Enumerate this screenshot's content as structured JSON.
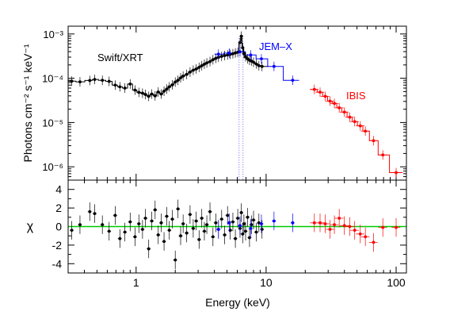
{
  "chart_data": [
    {
      "type": "scatter",
      "panel": "spectrum",
      "ylabel": "Photons cm⁻² s⁻¹ keV⁻¹",
      "xscale": "log",
      "yscale": "log",
      "xlim": [
        0.3,
        120
      ],
      "ylim": [
        5e-07,
        0.0015
      ],
      "yticks": [
        {
          "value": 1e-06,
          "label": "10⁻⁶"
        },
        {
          "value": 1e-05,
          "label": "10⁻⁵"
        },
        {
          "value": 0.0001,
          "label": "10⁻⁴"
        },
        {
          "value": 0.001,
          "label": "10⁻³"
        }
      ],
      "series": [
        {
          "name": "Swift/XRT",
          "color": "#000000",
          "points": [
            [
              0.32,
              8.6e-05
            ],
            [
              0.37,
              8.3e-05
            ],
            [
              0.44,
              8.9e-05
            ],
            [
              0.48,
              9.4e-05
            ],
            [
              0.55,
              9e-05
            ],
            [
              0.62,
              8.5e-05
            ],
            [
              0.69,
              7e-05
            ],
            [
              0.75,
              6.4e-05
            ],
            [
              0.82,
              6e-05
            ],
            [
              0.9,
              7.4e-05
            ],
            [
              0.98,
              5.4e-05
            ],
            [
              1.05,
              4.8e-05
            ],
            [
              1.12,
              4.6e-05
            ],
            [
              1.18,
              4.3e-05
            ],
            [
              1.25,
              3.9e-05
            ],
            [
              1.32,
              4.4e-05
            ],
            [
              1.4,
              4e-05
            ],
            [
              1.48,
              4.9e-05
            ],
            [
              1.56,
              4.4e-05
            ],
            [
              1.64,
              5.1e-05
            ],
            [
              1.72,
              5.7e-05
            ],
            [
              1.8,
              6.4e-05
            ],
            [
              1.9,
              7.1e-05
            ],
            [
              2.0,
              8.2e-05
            ],
            [
              2.1,
              9e-05
            ],
            [
              2.2,
              0.000102
            ],
            [
              2.3,
              0.000112
            ],
            [
              2.45,
              0.000122
            ],
            [
              2.6,
              0.000138
            ],
            [
              2.75,
              0.000152
            ],
            [
              2.9,
              0.000162
            ],
            [
              3.05,
              0.000176
            ],
            [
              3.2,
              0.000192
            ],
            [
              3.35,
              0.000208
            ],
            [
              3.5,
              0.000222
            ],
            [
              3.7,
              0.000238
            ],
            [
              3.9,
              0.000262
            ],
            [
              4.1,
              0.000282
            ],
            [
              4.3,
              0.000298
            ],
            [
              4.55,
              0.000312
            ],
            [
              4.8,
              0.000325
            ],
            [
              5.05,
              0.000336
            ],
            [
              5.3,
              0.000346
            ],
            [
              5.55,
              0.000358
            ],
            [
              5.8,
              0.000372
            ],
            [
              6.05,
              0.000386
            ],
            [
              6.3,
              0.00064
            ],
            [
              6.45,
              0.00089
            ],
            [
              6.6,
              0.00049
            ],
            [
              6.75,
              0.00036
            ],
            [
              6.95,
              0.000305
            ],
            [
              7.2,
              0.000275
            ],
            [
              7.45,
              0.000255
            ],
            [
              7.7,
              0.000245
            ],
            [
              8.0,
              0.00023
            ],
            [
              8.4,
              0.00021
            ],
            [
              8.8,
              0.000192
            ],
            [
              9.3,
              0.000185
            ]
          ]
        },
        {
          "name": "JEM-X",
          "color": "#0000ff",
          "points": [
            [
              4.3,
              0.00035
            ],
            [
              5.2,
              0.00037
            ],
            [
              6.3,
              0.000395
            ],
            [
              7.6,
              0.000335
            ],
            [
              9.2,
              0.000275
            ],
            [
              11.5,
              0.000185
            ],
            [
              16.0,
              9e-05
            ]
          ]
        },
        {
          "name": "IBIS",
          "color": "#ff0000",
          "points": [
            [
              23.5,
              5.6e-05
            ],
            [
              26.0,
              4.85e-05
            ],
            [
              28.5,
              3.9e-05
            ],
            [
              31.0,
              3.05e-05
            ],
            [
              33.5,
              2.7e-05
            ],
            [
              36.5,
              2.15e-05
            ],
            [
              40.0,
              1.72e-05
            ],
            [
              44.0,
              1.32e-05
            ],
            [
              48.0,
              1.05e-05
            ],
            [
              53.0,
              8.4e-06
            ],
            [
              58.0,
              6.4e-06
            ],
            [
              67.0,
              3.9e-06
            ],
            [
              79.0,
              1.85e-06
            ],
            [
              100.0,
              7.4e-07
            ]
          ]
        }
      ],
      "annotations": [
        {
          "text": "Swift/XRT",
          "color": "#000000"
        },
        {
          "text": "JEM–X",
          "color": "#0000ff"
        },
        {
          "text": "IBIS",
          "color": "#ff0000"
        }
      ]
    },
    {
      "type": "scatter",
      "panel": "residuals",
      "xlabel": "Energy (keV)",
      "ylabel": "χ",
      "xscale": "log",
      "xlim": [
        0.3,
        120
      ],
      "ylim": [
        -5,
        5
      ],
      "yticks": [
        -4,
        -2,
        0,
        2,
        4
      ],
      "xticks": [
        {
          "value": 1,
          "label": "1"
        },
        {
          "value": 10,
          "label": "10"
        },
        {
          "value": 100,
          "label": "100"
        }
      ],
      "zero_line_color": "#00cc00",
      "series": [
        {
          "name": "Swift/XRT",
          "color": "#000000",
          "points": [
            [
              0.32,
              -0.4
            ],
            [
              0.37,
              0.2
            ],
            [
              0.44,
              1.6
            ],
            [
              0.48,
              1.4
            ],
            [
              0.55,
              0.2
            ],
            [
              0.62,
              -0.5
            ],
            [
              0.69,
              1.2
            ],
            [
              0.75,
              -1.3
            ],
            [
              0.82,
              -0.6
            ],
            [
              0.9,
              0.5
            ],
            [
              0.98,
              -1.1
            ],
            [
              1.05,
              0.3
            ],
            [
              1.12,
              -0.3
            ],
            [
              1.18,
              0.9
            ],
            [
              1.25,
              -2.4
            ],
            [
              1.32,
              0.6
            ],
            [
              1.4,
              1.8
            ],
            [
              1.48,
              -0.9
            ],
            [
              1.56,
              0.4
            ],
            [
              1.64,
              -1.6
            ],
            [
              1.72,
              1.1
            ],
            [
              1.8,
              -0.4
            ],
            [
              1.9,
              0.8
            ],
            [
              2.0,
              -3.6
            ],
            [
              2.1,
              1.9
            ],
            [
              2.2,
              -1.0
            ],
            [
              2.3,
              0.3
            ],
            [
              2.45,
              -0.7
            ],
            [
              2.6,
              1.3
            ],
            [
              2.75,
              -0.2
            ],
            [
              2.9,
              0.6
            ],
            [
              3.05,
              -1.4
            ],
            [
              3.2,
              0.9
            ],
            [
              3.35,
              -0.5
            ],
            [
              3.5,
              0.2
            ],
            [
              3.7,
              1.6
            ],
            [
              3.9,
              -1.1
            ],
            [
              4.1,
              0.4
            ],
            [
              4.3,
              -0.3
            ],
            [
              4.55,
              0.8
            ],
            [
              4.8,
              -0.9
            ],
            [
              5.05,
              1.2
            ],
            [
              5.3,
              -0.4
            ],
            [
              5.55,
              0.5
            ],
            [
              5.8,
              -1.3
            ],
            [
              6.05,
              0.9
            ],
            [
              6.3,
              -0.2
            ],
            [
              6.45,
              1.5
            ],
            [
              6.6,
              -0.8
            ],
            [
              6.75,
              0.3
            ],
            [
              6.95,
              -0.5
            ],
            [
              7.2,
              1.0
            ],
            [
              7.45,
              -1.2
            ],
            [
              7.7,
              0.2
            ],
            [
              8.0,
              0.7
            ],
            [
              8.4,
              -0.6
            ],
            [
              8.8,
              0.4
            ],
            [
              9.3,
              -0.3
            ]
          ]
        },
        {
          "name": "JEM-X",
          "color": "#0000ff",
          "points": [
            [
              4.3,
              -0.3
            ],
            [
              5.2,
              0.4
            ],
            [
              6.3,
              0.1
            ],
            [
              7.6,
              -0.2
            ],
            [
              9.2,
              0.3
            ],
            [
              11.5,
              0.6
            ],
            [
              16.0,
              0.4
            ]
          ]
        },
        {
          "name": "IBIS",
          "color": "#ff0000",
          "points": [
            [
              23.5,
              0.4
            ],
            [
              26.0,
              0.4
            ],
            [
              28.5,
              0.3
            ],
            [
              31.0,
              -0.3
            ],
            [
              33.5,
              0.2
            ],
            [
              36.5,
              0.9
            ],
            [
              40.0,
              0.1
            ],
            [
              44.0,
              0.0
            ],
            [
              48.0,
              -0.4
            ],
            [
              53.0,
              -0.8
            ],
            [
              58.0,
              -1.1
            ],
            [
              67.0,
              -1.7
            ],
            [
              79.0,
              -0.1
            ],
            [
              100.0,
              -0.1
            ]
          ]
        }
      ]
    }
  ]
}
